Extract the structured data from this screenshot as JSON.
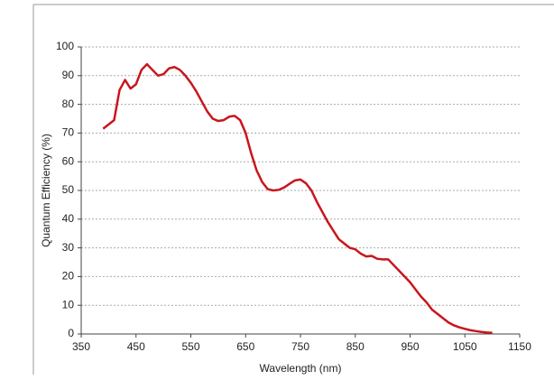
{
  "chart_data": {
    "type": "line",
    "x_label": "Wavelength (nm)",
    "y_label": "Quantum  Efficiency (%)",
    "xlim": [
      350,
      1150
    ],
    "xticks": [
      350,
      450,
      550,
      650,
      750,
      850,
      950,
      1050,
      1150
    ],
    "ylim": [
      0,
      100
    ],
    "yticks": [
      0,
      10,
      20,
      30,
      40,
      50,
      60,
      70,
      80,
      90,
      100
    ],
    "grid": true,
    "x": [
      390,
      400,
      410,
      420,
      430,
      440,
      450,
      460,
      470,
      480,
      490,
      500,
      510,
      520,
      530,
      540,
      550,
      560,
      570,
      580,
      590,
      600,
      610,
      620,
      630,
      640,
      650,
      660,
      670,
      680,
      690,
      700,
      710,
      720,
      730,
      740,
      750,
      760,
      770,
      780,
      790,
      800,
      810,
      820,
      830,
      840,
      850,
      860,
      870,
      880,
      890,
      900,
      910,
      920,
      930,
      940,
      950,
      960,
      970,
      980,
      990,
      1000,
      1010,
      1020,
      1030,
      1040,
      1050,
      1060,
      1070,
      1080,
      1090,
      1100
    ],
    "series": [
      {
        "color": "#c8161d",
        "values": [
          71.5,
          73,
          74.5,
          85,
          88.5,
          85.5,
          87,
          92,
          94,
          92,
          90,
          90.5,
          92.5,
          93,
          92,
          90,
          87.5,
          84.5,
          81,
          77.5,
          75,
          74.2,
          74.5,
          75.7,
          76,
          74.5,
          70,
          63,
          57,
          53,
          50.5,
          50,
          50.2,
          51,
          52.3,
          53.5,
          53.8,
          52.5,
          50,
          46,
          42.5,
          39,
          36,
          33,
          31.5,
          30,
          29.5,
          28,
          27,
          27.2,
          26.2,
          26,
          26,
          24,
          22,
          20,
          18,
          15.5,
          13,
          11,
          8.5,
          7,
          5.5,
          4,
          3,
          2.3,
          1.8,
          1.3,
          1,
          0.7,
          0.5,
          0.4
        ]
      }
    ]
  }
}
